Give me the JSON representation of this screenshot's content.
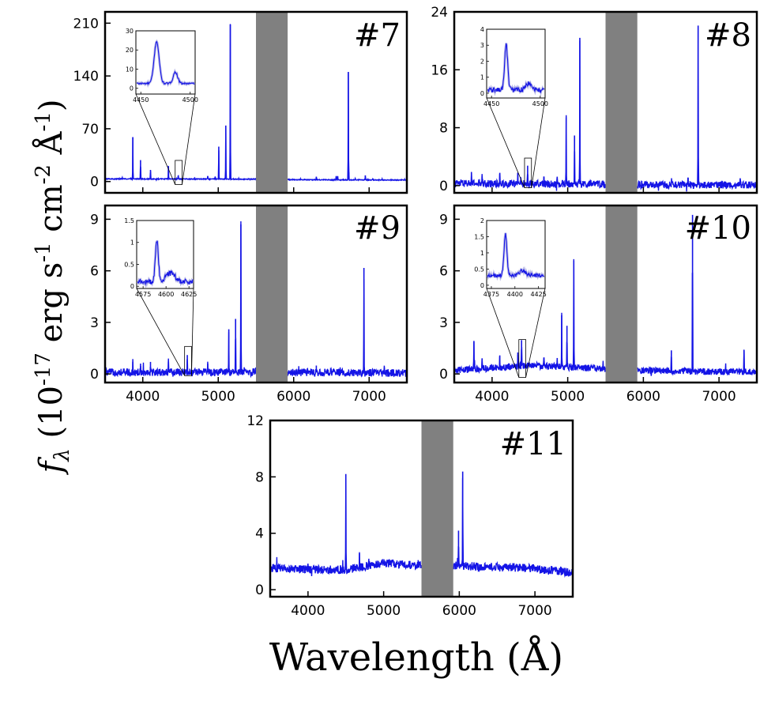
{
  "figure": {
    "ylabel": "fλ (10⁻¹⁷ erg s⁻¹ cm⁻² Å⁻¹)",
    "ylabel_parts": {
      "f": "f",
      "lambda": "λ",
      "open": " (10",
      "exp1": "-17",
      "erg": " erg s",
      "exp2": "-1",
      "cm": " cm",
      "exp3": "-2",
      "angstrom": " Å",
      "exp4": "-1",
      "close": ")"
    },
    "xlabel": "Wavelength (Å)",
    "line_color": "#1414e6",
    "mask_color": "#808080"
  },
  "chart_data": [
    {
      "type": "line",
      "id": "p7",
      "label": "#7",
      "xlim": [
        3500,
        7500
      ],
      "ylim": [
        -15,
        225
      ],
      "yticks": [
        0,
        70,
        140,
        210
      ],
      "xticks": [],
      "mask": [
        5500,
        5920
      ],
      "continuum": [
        [
          3500,
          3.5
        ],
        [
          5500,
          3.2
        ],
        [
          5920,
          2.5
        ],
        [
          7500,
          2
        ]
      ],
      "noise": 0.6,
      "lines": [
        [
          3727,
          2
        ],
        [
          3868,
          55
        ],
        [
          3970,
          25
        ],
        [
          4102,
          12
        ],
        [
          4340,
          17
        ],
        [
          4470,
          5
        ],
        [
          4686,
          2
        ],
        [
          4861,
          4
        ],
        [
          4959,
          3
        ],
        [
          5007,
          43
        ],
        [
          5100,
          71
        ],
        [
          5160,
          205
        ],
        [
          6300,
          4
        ],
        [
          6563,
          5
        ],
        [
          6583,
          5
        ],
        [
          6724,
          143
        ],
        [
          6731,
          10
        ],
        [
          6950,
          6
        ]
      ],
      "zoom_box": [
        4450,
        4500,
        -4,
        28
      ],
      "inset": {
        "xlim": [
          4445,
          4505
        ],
        "ylim": [
          -3,
          30
        ],
        "xticks": [
          4450,
          4500
        ],
        "yticks": [
          0,
          10,
          20,
          30
        ],
        "continuum": 2.5,
        "noise": 0.5,
        "lines": [
          [
            4466,
            22,
            2.5
          ],
          [
            4485,
            6,
            2.2
          ]
        ]
      }
    },
    {
      "type": "line",
      "id": "p8",
      "label": "#8",
      "xlim": [
        3500,
        7500
      ],
      "ylim": [
        -1,
        24
      ],
      "yticks": [
        0,
        8,
        16,
        24
      ],
      "xticks": [],
      "mask": [
        5500,
        5920
      ],
      "continuum": [
        [
          3500,
          0.3
        ],
        [
          5500,
          0.2
        ],
        [
          5920,
          0.1
        ],
        [
          7500,
          0.1
        ]
      ],
      "noise": 0.5,
      "lines": [
        [
          3727,
          1.6
        ],
        [
          3868,
          1
        ],
        [
          4102,
          1.5
        ],
        [
          4340,
          1.5
        ],
        [
          4470,
          2.5
        ],
        [
          4686,
          1
        ],
        [
          4861,
          1
        ],
        [
          4980,
          9.2
        ],
        [
          5090,
          6.7
        ],
        [
          5160,
          20.2
        ],
        [
          6590,
          1
        ],
        [
          6724,
          22
        ],
        [
          7280,
          0.8
        ]
      ],
      "zoom_box": [
        4450,
        4500,
        -0.3,
        3.8
      ],
      "inset": {
        "xlim": [
          4445,
          4505
        ],
        "ylim": [
          -0.3,
          4
        ],
        "xticks": [
          4450,
          4500
        ],
        "yticks": [
          0,
          1,
          2,
          3,
          4
        ],
        "continuum": 0.2,
        "noise": 0.15,
        "lines": [
          [
            4465,
            2.8,
            1.6
          ],
          [
            4488,
            0.4,
            3
          ]
        ]
      }
    },
    {
      "type": "line",
      "id": "p9",
      "label": "#9",
      "xlim": [
        3500,
        7500
      ],
      "ylim": [
        -0.5,
        9.8
      ],
      "yticks": [
        0,
        3,
        6,
        9
      ],
      "xticks": [
        4000,
        5000,
        6000,
        7000
      ],
      "mask": [
        5500,
        5920
      ],
      "continuum": [
        [
          3500,
          0.1
        ],
        [
          5500,
          0.1
        ],
        [
          5920,
          0.1
        ],
        [
          7500,
          0.05
        ]
      ],
      "noise": 0.22,
      "lines": [
        [
          3868,
          0.6
        ],
        [
          3970,
          0.5
        ],
        [
          4102,
          0.6
        ],
        [
          4340,
          0.6
        ],
        [
          4590,
          1
        ],
        [
          4861,
          0.5
        ],
        [
          5140,
          2.5
        ],
        [
          5230,
          3.1
        ],
        [
          5300,
          8.6
        ],
        [
          6300,
          0.4
        ],
        [
          6931,
          6.1
        ]
      ],
      "zoom_box": [
        4575,
        4625,
        -0.1,
        1.6
      ],
      "inset": {
        "xlim": [
          4568,
          4630
        ],
        "ylim": [
          -0.05,
          1.5
        ],
        "xticks": [
          4575,
          4600,
          4625
        ],
        "yticks": [
          0.0,
          0.5,
          1.0,
          1.5
        ],
        "continuum": 0.1,
        "noise": 0.06,
        "lines": [
          [
            4590,
            0.95,
            1.6
          ],
          [
            4605,
            0.2,
            5
          ]
        ]
      }
    },
    {
      "type": "line",
      "id": "p10",
      "label": "#10",
      "xlim": [
        3500,
        7500
      ],
      "ylim": [
        -0.5,
        9.8
      ],
      "yticks": [
        0,
        3,
        6,
        9
      ],
      "xticks": [
        4000,
        5000,
        6000,
        7000
      ],
      "mask": [
        5500,
        5920
      ],
      "continuum": [
        [
          3500,
          0.2
        ],
        [
          4500,
          0.5
        ],
        [
          5500,
          0.3
        ],
        [
          5920,
          0.2
        ],
        [
          7500,
          0.1
        ]
      ],
      "noise": 0.2,
      "lines": [
        [
          3760,
          1.6
        ],
        [
          3868,
          0.6
        ],
        [
          4102,
          0.7
        ],
        [
          4340,
          0.8
        ],
        [
          4390,
          1.5
        ],
        [
          4686,
          0.5
        ],
        [
          4861,
          0.5
        ],
        [
          4920,
          3
        ],
        [
          4990,
          2.4
        ],
        [
          5080,
          6.2
        ],
        [
          6370,
          1.2
        ],
        [
          6650,
          9.1
        ],
        [
          7330,
          1.3
        ]
      ],
      "zoom_box": [
        4375,
        4425,
        -0.2,
        2.0
      ],
      "inset": {
        "xlim": [
          4370,
          4432
        ],
        "ylim": [
          -0.1,
          2.0
        ],
        "xticks": [
          4375,
          4400,
          4425
        ],
        "yticks": [
          0.0,
          0.5,
          1.0,
          1.5,
          2.0
        ],
        "continuum": 0.3,
        "noise": 0.06,
        "lines": [
          [
            4390,
            1.3,
            1.5
          ],
          [
            4408,
            0.15,
            3
          ]
        ]
      }
    },
    {
      "type": "line",
      "id": "p11",
      "label": "#11",
      "xlim": [
        3500,
        7500
      ],
      "ylim": [
        -0.5,
        12
      ],
      "yticks": [
        0,
        4,
        8,
        12
      ],
      "xticks": [
        4000,
        5000,
        6000,
        7000
      ],
      "mask": [
        5500,
        5920
      ],
      "continuum": [
        [
          3500,
          1.5
        ],
        [
          4500,
          1.4
        ],
        [
          5000,
          1.9
        ],
        [
          5500,
          1.7
        ],
        [
          5920,
          1.7
        ],
        [
          7000,
          1.5
        ],
        [
          7500,
          1.2
        ]
      ],
      "noise": 0.3,
      "lines": [
        [
          4500,
          6.8
        ],
        [
          4680,
          1
        ],
        [
          5990,
          2.5
        ],
        [
          6045,
          6.7
        ],
        [
          7220,
          0.3
        ]
      ],
      "zoom_box": null,
      "inset": null
    }
  ]
}
